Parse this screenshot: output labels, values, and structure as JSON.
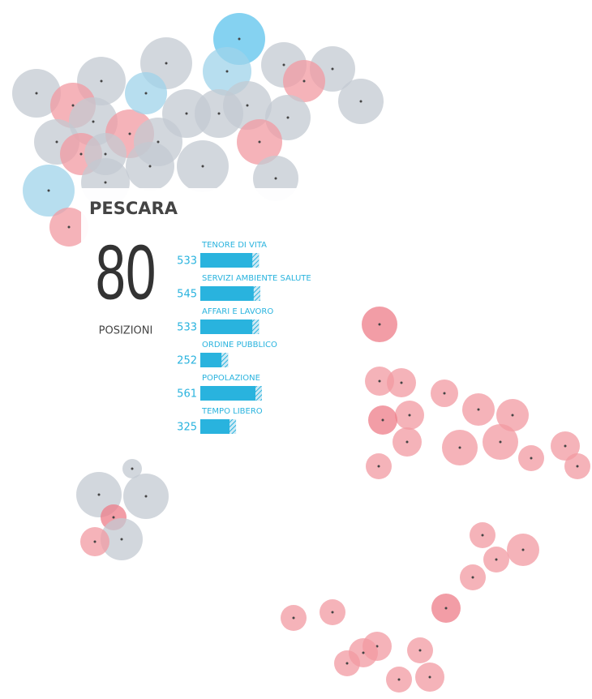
{
  "tooltip": {
    "title": "PESCARA",
    "rank": "80",
    "rank_label": "POSIZIONI",
    "bars": [
      {
        "label": "TENORE DI VITA",
        "value": 533
      },
      {
        "label": "SERVIZI AMBIENTE SALUTE",
        "value": 545
      },
      {
        "label": "AFFARI E LAVORO",
        "value": 533
      },
      {
        "label": "ORDINE PUBBLICO",
        "value": 252
      },
      {
        "label": "POPOLAZIONE",
        "value": 561
      },
      {
        "label": "TEMPO LIBERO",
        "value": 325
      }
    ]
  }
}
